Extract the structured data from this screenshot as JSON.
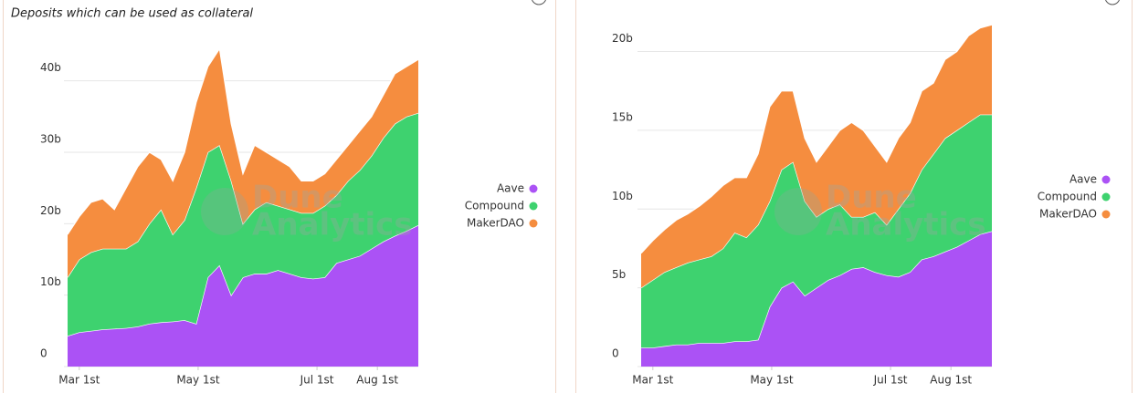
{
  "chart_data": [
    {
      "type": "area",
      "subtitle": "Deposits which can be used as collateral",
      "watermark": [
        "Dune",
        "Analytics"
      ],
      "x": [
        -6,
        0,
        6,
        12,
        18,
        24,
        30,
        36,
        42,
        48,
        54,
        60,
        66,
        72,
        78,
        84,
        90,
        96,
        102,
        108,
        114,
        120,
        126,
        132,
        138,
        144,
        150,
        156,
        162,
        168,
        174
      ],
      "xlim": [
        -6,
        174
      ],
      "xticks": [
        {
          "value": 0,
          "label": "Mar 1st"
        },
        {
          "value": 61,
          "label": "May 1st"
        },
        {
          "value": 122,
          "label": "Jul 1st"
        },
        {
          "value": 153,
          "label": "Aug 1st"
        }
      ],
      "ylim": [
        0,
        48
      ],
      "yticks": [
        0,
        {
          "value": 10,
          "label": "10b"
        },
        {
          "value": 20,
          "label": "20b"
        },
        {
          "value": 30,
          "label": "30b"
        },
        {
          "value": 40,
          "label": "40b"
        }
      ],
      "grid": true,
      "legend": "right",
      "series": [
        {
          "name": "Aave",
          "color": "#ab52f5",
          "values": [
            4.3,
            4.8,
            5.0,
            5.2,
            5.3,
            5.4,
            5.6,
            6.0,
            6.2,
            6.3,
            6.5,
            6.0,
            12.5,
            14.2,
            10.0,
            12.5,
            13.0,
            13.0,
            13.5,
            13.0,
            12.5,
            12.3,
            12.5,
            14.5,
            15.0,
            15.5,
            16.5,
            17.5,
            18.3,
            19.0,
            19.8
          ]
        },
        {
          "name": "Compound",
          "color": "#3ed26f",
          "values": [
            8.2,
            10.2,
            11.0,
            11.3,
            11.2,
            11.1,
            11.9,
            14.0,
            15.8,
            12.2,
            14.0,
            19.0,
            17.5,
            16.8,
            16.0,
            7.5,
            9.0,
            10.0,
            9.0,
            9.0,
            9.0,
            9.2,
            10.0,
            9.5,
            11.0,
            12.0,
            13.0,
            14.5,
            15.7,
            16.0,
            15.7
          ]
        },
        {
          "name": "MakerDAO",
          "color": "#f58d3f",
          "values": [
            6.0,
            6.0,
            7.0,
            7.0,
            5.5,
            8.5,
            10.5,
            10.0,
            7.0,
            7.5,
            9.5,
            12.0,
            12.0,
            13.5,
            8.0,
            7.0,
            9.0,
            7.0,
            6.5,
            6.0,
            4.5,
            4.5,
            4.5,
            5.0,
            5.0,
            5.5,
            5.5,
            6.0,
            7.0,
            7.0,
            7.5
          ]
        }
      ]
    },
    {
      "type": "area",
      "watermark": [
        "Dune",
        "Analytics"
      ],
      "x": [
        -6,
        0,
        6,
        12,
        18,
        24,
        30,
        36,
        42,
        48,
        54,
        60,
        66,
        72,
        78,
        84,
        90,
        96,
        102,
        108,
        114,
        120,
        126,
        132,
        138,
        144,
        150,
        156,
        162,
        168,
        174
      ],
      "xlim": [
        -6,
        174
      ],
      "xticks": [
        {
          "value": 0,
          "label": "Mar 1st"
        },
        {
          "value": 61,
          "label": "May 1st"
        },
        {
          "value": 122,
          "label": "Jul 1st"
        },
        {
          "value": 153,
          "label": "Aug 1st"
        }
      ],
      "ylim": [
        0,
        22
      ],
      "yticks": [
        0,
        {
          "value": 5,
          "label": "5b"
        },
        {
          "value": 10,
          "label": "10b"
        },
        {
          "value": 15,
          "label": "15b"
        },
        {
          "value": 20,
          "label": "20b"
        }
      ],
      "grid": true,
      "legend": "right",
      "series": [
        {
          "name": "Aave",
          "color": "#ab52f5",
          "values": [
            1.2,
            1.2,
            1.3,
            1.4,
            1.4,
            1.5,
            1.5,
            1.5,
            1.6,
            1.6,
            1.7,
            3.8,
            5.0,
            5.4,
            4.5,
            5.0,
            5.5,
            5.8,
            6.2,
            6.3,
            6.0,
            5.8,
            5.7,
            6.0,
            6.8,
            7.0,
            7.3,
            7.6,
            8.0,
            8.4,
            8.6
          ]
        },
        {
          "name": "Compound",
          "color": "#3ed26f",
          "values": [
            3.8,
            4.3,
            4.7,
            4.9,
            5.2,
            5.3,
            5.5,
            6.0,
            6.9,
            6.6,
            7.3,
            6.7,
            7.5,
            7.6,
            6.0,
            4.5,
            4.5,
            4.5,
            3.3,
            3.2,
            3.8,
            3.2,
            4.3,
            5.0,
            5.7,
            6.5,
            7.2,
            7.4,
            7.5,
            7.6,
            7.4
          ]
        },
        {
          "name": "MakerDAO",
          "color": "#f58d3f",
          "values": [
            2.2,
            2.5,
            2.7,
            3.0,
            3.1,
            3.4,
            3.8,
            4.0,
            3.5,
            3.8,
            4.5,
            6.0,
            5.0,
            4.5,
            4.0,
            3.5,
            4.0,
            4.7,
            6.0,
            5.5,
            4.2,
            4.0,
            4.5,
            4.5,
            5.0,
            4.5,
            5.0,
            5.0,
            5.5,
            5.5,
            5.7
          ]
        }
      ]
    }
  ]
}
